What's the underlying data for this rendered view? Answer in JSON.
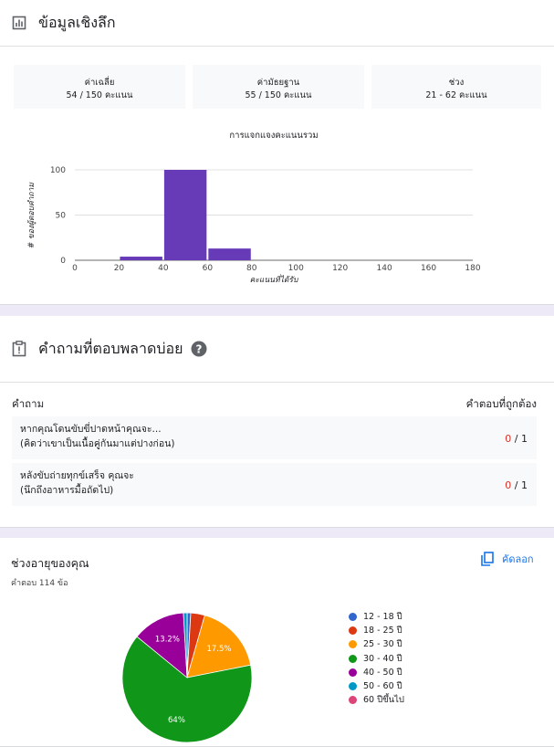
{
  "insights": {
    "title": "ข้อมูลเชิงลึก",
    "stats": [
      {
        "label": "ค่าเฉลี่ย",
        "value": "54 / 150 คะแนน"
      },
      {
        "label": "ค่ามัธยฐาน",
        "value": "55 / 150 คะแนน"
      },
      {
        "label": "ช่วง",
        "value": "21 - 62 คะแนน"
      }
    ]
  },
  "chart_data": [
    {
      "type": "bar",
      "title": "การแจกแจงคะแนนรวม",
      "xlabel": "คะแนนที่ได้รับ",
      "ylabel": "# ของผู้ตอบคำถาม",
      "x_ticks": [
        0,
        20,
        40,
        60,
        80,
        100,
        120,
        140,
        160,
        180
      ],
      "y_ticks": [
        0,
        50,
        100
      ],
      "xlim": [
        0,
        180
      ],
      "ylim": [
        0,
        110
      ],
      "bins": [
        {
          "from": 20,
          "to": 40,
          "value": 4
        },
        {
          "from": 40,
          "to": 60,
          "value": 100
        },
        {
          "from": 60,
          "to": 80,
          "value": 13
        }
      ],
      "color": "#673ab7",
      "grid": true
    },
    {
      "type": "pie",
      "title": "ช่วงอายุของคุณ",
      "slices": [
        {
          "label": "12 - 18 ปี",
          "value": 0.9,
          "color": "#3366cc"
        },
        {
          "label": "18 - 25 ปี",
          "value": 3.5,
          "color": "#dc3912"
        },
        {
          "label": "25 - 30 ปี",
          "value": 17.5,
          "color": "#ff9900"
        },
        {
          "label": "30 - 40 ปี",
          "value": 64,
          "color": "#109618"
        },
        {
          "label": "40 - 50 ปี",
          "value": 13.2,
          "color": "#990099"
        },
        {
          "label": "50 - 60 ปี",
          "value": 0.9,
          "color": "#0099c6"
        },
        {
          "label": "60 ปีขึ้นไป",
          "value": 0,
          "color": "#dd4477"
        }
      ],
      "data_labels": [
        "64%",
        "17.5%",
        "13.2%"
      ]
    }
  ],
  "missed": {
    "title": "คำถามที่ตอบพลาดบ่อย",
    "col_question": "คำถาม",
    "col_correct": "คำตอบที่ถูกต้อง",
    "rows": [
      {
        "line1": "หากคุณโดนขับขี่ปาดหน้าคุณจะ...",
        "line2": "(คิดว่าเขาเป็นเนื้อคู่กันมาแต่ปางก่อน)",
        "correct": "0",
        "total": " / 1"
      },
      {
        "line1": "หลังขับถ่ายทุกข์เสร็จ คุณจะ",
        "line2": "(นึกถึงอาหารมื้อถัดไป)",
        "correct": "0",
        "total": " / 1"
      }
    ]
  },
  "age": {
    "title": "ช่วงอายุของคุณ",
    "subtitle": "คำตอบ 114 ข้อ",
    "copy_label": "คัดลอก"
  }
}
